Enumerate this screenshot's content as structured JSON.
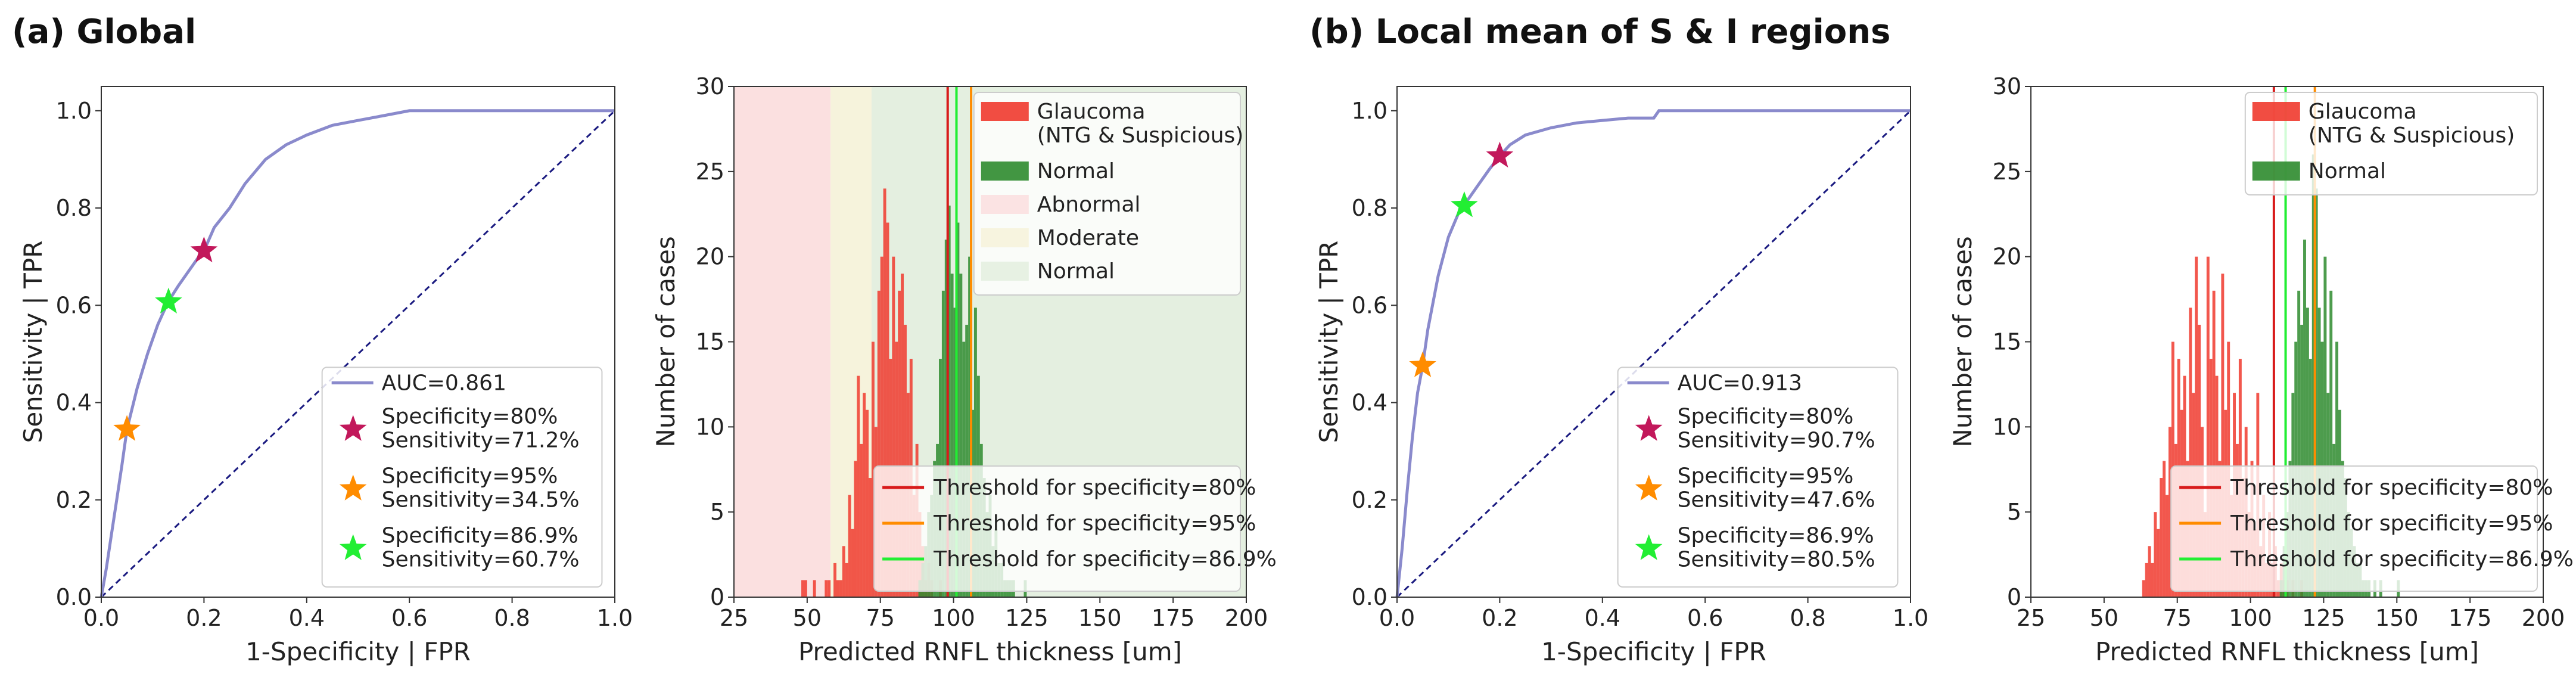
{
  "panels": [
    {
      "label": "(a) Global"
    },
    {
      "label": "(b) Local mean of S & I regions"
    }
  ],
  "chart_data": [
    {
      "type": "line",
      "id": "roc-global",
      "title": "",
      "xlabel": "1-Specificity | FPR",
      "ylabel": "Sensitivity | TPR",
      "xlim": [
        0,
        1
      ],
      "ylim": [
        0,
        1.05
      ],
      "xticks": [
        "0.0",
        "0.2",
        "0.4",
        "0.6",
        "0.8",
        "1.0"
      ],
      "yticks": [
        "0.0",
        "0.2",
        "0.4",
        "0.6",
        "0.8",
        "1.0"
      ],
      "roc_curve": {
        "x": [
          0,
          0.01,
          0.02,
          0.03,
          0.04,
          0.05,
          0.07,
          0.09,
          0.11,
          0.13,
          0.15,
          0.17,
          0.19,
          0.2,
          0.22,
          0.25,
          0.28,
          0.32,
          0.36,
          0.4,
          0.45,
          0.5,
          0.55,
          0.6,
          0.7,
          0.8,
          1.0
        ],
        "y": [
          0,
          0.06,
          0.13,
          0.2,
          0.27,
          0.345,
          0.43,
          0.5,
          0.56,
          0.607,
          0.64,
          0.67,
          0.7,
          0.712,
          0.76,
          0.8,
          0.85,
          0.9,
          0.93,
          0.95,
          0.97,
          0.98,
          0.99,
          1.0,
          1.0,
          1.0,
          1.0
        ]
      },
      "legend": [
        {
          "kind": "line",
          "color": "#8a8acc",
          "label": "AUC=0.861"
        },
        {
          "kind": "star",
          "color": "#c2185b",
          "label": "Specificity=80%",
          "label2": "Sensitivity=71.2%",
          "x": 0.2,
          "y": 0.712
        },
        {
          "kind": "star",
          "color": "#ff8c00",
          "label": "Specificity=95%",
          "label2": "Sensitivity=34.5%",
          "x": 0.05,
          "y": 0.345
        },
        {
          "kind": "star",
          "color": "#22ee33",
          "label": "Specificity=86.9%",
          "label2": "Sensitivity=60.7%",
          "x": 0.131,
          "y": 0.607
        }
      ]
    },
    {
      "type": "bar",
      "id": "hist-global",
      "title": "",
      "xlabel": "Predicted RNFL thickness [um]",
      "ylabel": "Number of cases",
      "xlim": [
        25,
        200
      ],
      "ylim": [
        0,
        30
      ],
      "xticks": [
        "25",
        "50",
        "75",
        "100",
        "125",
        "150",
        "175",
        "200"
      ],
      "yticks": [
        "0",
        "5",
        "10",
        "15",
        "20",
        "25",
        "30"
      ],
      "regions": [
        {
          "label": "Abnormal",
          "from": 25,
          "to": 58,
          "color": "#fbe0e0"
        },
        {
          "label": "Moderate",
          "from": 58,
          "to": 72,
          "color": "#f6f3dc"
        },
        {
          "label": "Normal",
          "from": 72,
          "to": 200,
          "color": "#e4efe0"
        }
      ],
      "bin_width": 1,
      "series": [
        {
          "name": "Glaucoma",
          "name2": "(NTG & Suspicious)",
          "color": "#f03a2e",
          "start": 48,
          "values": [
            1,
            1,
            0,
            0,
            1,
            0,
            0,
            0,
            1,
            1,
            0,
            2,
            1,
            1,
            3,
            2,
            6,
            4,
            8,
            13,
            9,
            12,
            11,
            7,
            15,
            10,
            18,
            20,
            24,
            22,
            14,
            20,
            15,
            18,
            19,
            16,
            12,
            14,
            6,
            9,
            5,
            3,
            1,
            2,
            1,
            0,
            0,
            1,
            0,
            0
          ]
        },
        {
          "name": "Normal",
          "name2": "",
          "color": "#2e8b2e",
          "start": 88,
          "values": [
            1,
            2,
            3,
            5,
            6,
            8,
            9,
            14,
            18,
            21,
            23,
            19,
            17,
            22,
            19,
            15,
            16,
            20,
            11,
            17,
            13,
            9,
            7,
            5,
            6,
            3,
            4,
            2,
            2,
            1,
            1,
            1,
            1,
            0,
            0,
            0,
            1
          ]
        }
      ],
      "thresholds": [
        {
          "label": "Threshold for specificity=80%",
          "value": 98,
          "color": "#d81b1b"
        },
        {
          "label": "Threshold for specificity=95%",
          "value": 106,
          "color": "#ff8c00"
        },
        {
          "label": "Threshold for specificity=86.9%",
          "value": 101,
          "color": "#22ee33"
        }
      ]
    },
    {
      "type": "line",
      "id": "roc-local",
      "title": "",
      "xlabel": "1-Specificity | FPR",
      "ylabel": "Sensitivity | TPR",
      "xlim": [
        0,
        1
      ],
      "ylim": [
        0,
        1.05
      ],
      "xticks": [
        "0.0",
        "0.2",
        "0.4",
        "0.6",
        "0.8",
        "1.0"
      ],
      "yticks": [
        "0.0",
        "0.2",
        "0.4",
        "0.6",
        "0.8",
        "1.0"
      ],
      "roc_curve": {
        "x": [
          0,
          0.005,
          0.01,
          0.02,
          0.03,
          0.04,
          0.05,
          0.06,
          0.08,
          0.1,
          0.12,
          0.14,
          0.16,
          0.18,
          0.2,
          0.22,
          0.25,
          0.3,
          0.35,
          0.4,
          0.45,
          0.5,
          0.51,
          0.6,
          0.8,
          1.0
        ],
        "y": [
          0,
          0.05,
          0.1,
          0.22,
          0.33,
          0.42,
          0.476,
          0.55,
          0.66,
          0.74,
          0.79,
          0.82,
          0.85,
          0.88,
          0.907,
          0.93,
          0.95,
          0.965,
          0.975,
          0.98,
          0.985,
          0.985,
          1.0,
          1.0,
          1.0,
          1.0
        ]
      },
      "legend": [
        {
          "kind": "line",
          "color": "#8a8acc",
          "label": "AUC=0.913"
        },
        {
          "kind": "star",
          "color": "#c2185b",
          "label": "Specificity=80%",
          "label2": "Sensitivity=90.7%",
          "x": 0.2,
          "y": 0.907
        },
        {
          "kind": "star",
          "color": "#ff8c00",
          "label": "Specificity=95%",
          "label2": "Sensitivity=47.6%",
          "x": 0.05,
          "y": 0.476
        },
        {
          "kind": "star",
          "color": "#22ee33",
          "label": "Specificity=86.9%",
          "label2": "Sensitivity=80.5%",
          "x": 0.131,
          "y": 0.805
        }
      ]
    },
    {
      "type": "bar",
      "id": "hist-local",
      "title": "",
      "xlabel": "Predicted RNFL thickness [um]",
      "ylabel": "Number of cases",
      "xlim": [
        25,
        200
      ],
      "ylim": [
        0,
        30
      ],
      "xticks": [
        "25",
        "50",
        "75",
        "100",
        "125",
        "150",
        "175",
        "200"
      ],
      "yticks": [
        "0",
        "5",
        "10",
        "15",
        "20",
        "25",
        "30"
      ],
      "regions": [],
      "bin_width": 1,
      "series": [
        {
          "name": "Glaucoma",
          "name2": "(NTG & Suspicious)",
          "color": "#f03a2e",
          "start": 63,
          "values": [
            1,
            2,
            3,
            2,
            5,
            4,
            7,
            8,
            6,
            10,
            15,
            9,
            14,
            11,
            13,
            8,
            17,
            12,
            20,
            16,
            10,
            5,
            20,
            14,
            18,
            13,
            8,
            19,
            11,
            15,
            6,
            12,
            9,
            14,
            7,
            10,
            5,
            8,
            4,
            12,
            3,
            6,
            2,
            5,
            2,
            3,
            1,
            2,
            1,
            1,
            0,
            1,
            0,
            0,
            1
          ]
        },
        {
          "name": "Normal",
          "name2": "",
          "color": "#2e8b2e",
          "start": 110,
          "values": [
            1,
            3,
            5,
            8,
            12,
            15,
            18,
            16,
            21,
            17,
            14,
            26,
            24,
            17,
            15,
            20,
            12,
            18,
            9,
            15,
            11,
            8,
            7,
            5,
            4,
            3,
            2,
            2,
            1,
            1,
            1,
            0,
            1,
            0,
            1,
            0,
            0,
            0,
            0,
            0,
            1
          ]
        }
      ],
      "thresholds": [
        {
          "label": "Threshold for specificity=80%",
          "value": 108,
          "color": "#d81b1b"
        },
        {
          "label": "Threshold for specificity=95%",
          "value": 122,
          "color": "#ff8c00"
        },
        {
          "label": "Threshold for specificity=86.9%",
          "value": 112,
          "color": "#22ee33"
        }
      ]
    }
  ]
}
